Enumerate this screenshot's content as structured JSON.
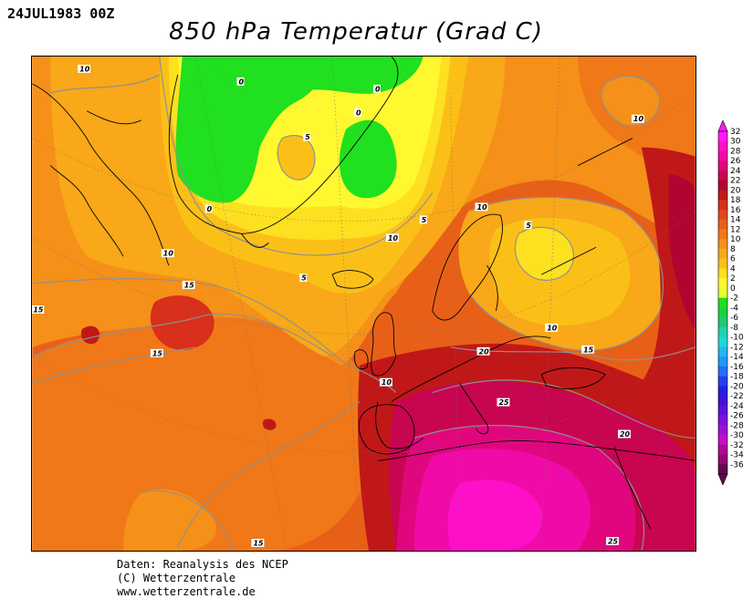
{
  "date": "24JUL1983 00Z",
  "title": "850 hPa Temperatur (Grad C)",
  "footer": {
    "line1": "Daten: Reanalysis des NCEP",
    "line2": "(C) Wetterzentrale",
    "line3": "www.wetterzentrale.de"
  },
  "legend": {
    "labels": [
      "32",
      "30",
      "28",
      "26",
      "24",
      "22",
      "20",
      "18",
      "16",
      "14",
      "12",
      "10",
      "8",
      "6",
      "4",
      "2",
      "0",
      "-2",
      "-4",
      "-6",
      "-8",
      "-10",
      "-12",
      "-14",
      "-16",
      "-18",
      "-20",
      "-22",
      "-24",
      "-26",
      "-28",
      "-30",
      "-32",
      "-34",
      "-36"
    ],
    "colors": [
      "#ff1aff",
      "#ff10c8",
      "#f00aa8",
      "#e0077e",
      "#c80550",
      "#b00530",
      "#c01818",
      "#d8301a",
      "#e0481a",
      "#e86018",
      "#f07818",
      "#f59018",
      "#f8a818",
      "#fbc018",
      "#fde020",
      "#fff830",
      "#e8ff30",
      "#20e020",
      "#20d040",
      "#20c878",
      "#20d0b0",
      "#20d8d8",
      "#20b8f0",
      "#2098f8",
      "#2070f8",
      "#2040f0",
      "#2020e0",
      "#4010d8",
      "#6010d8",
      "#8010d8",
      "#a010d0",
      "#c010c8",
      "#b00898",
      "#900870",
      "#600850"
    ]
  },
  "map": {
    "labels": [
      {
        "text": "10"
      },
      {
        "text": "0"
      },
      {
        "text": "0"
      },
      {
        "text": "0"
      },
      {
        "text": "5"
      },
      {
        "text": "0"
      },
      {
        "text": "10"
      },
      {
        "text": "5"
      },
      {
        "text": "10"
      },
      {
        "text": "5"
      },
      {
        "text": "10"
      },
      {
        "text": "5"
      },
      {
        "text": "10"
      },
      {
        "text": "15"
      },
      {
        "text": "15"
      },
      {
        "text": "15"
      },
      {
        "text": "10"
      },
      {
        "text": "10"
      },
      {
        "text": "15"
      },
      {
        "text": "20"
      },
      {
        "text": "25"
      },
      {
        "text": "20"
      },
      {
        "text": "25"
      },
      {
        "text": "15"
      },
      {
        "text": "10"
      },
      {
        "text": "5"
      },
      {
        "text": "5"
      }
    ]
  }
}
